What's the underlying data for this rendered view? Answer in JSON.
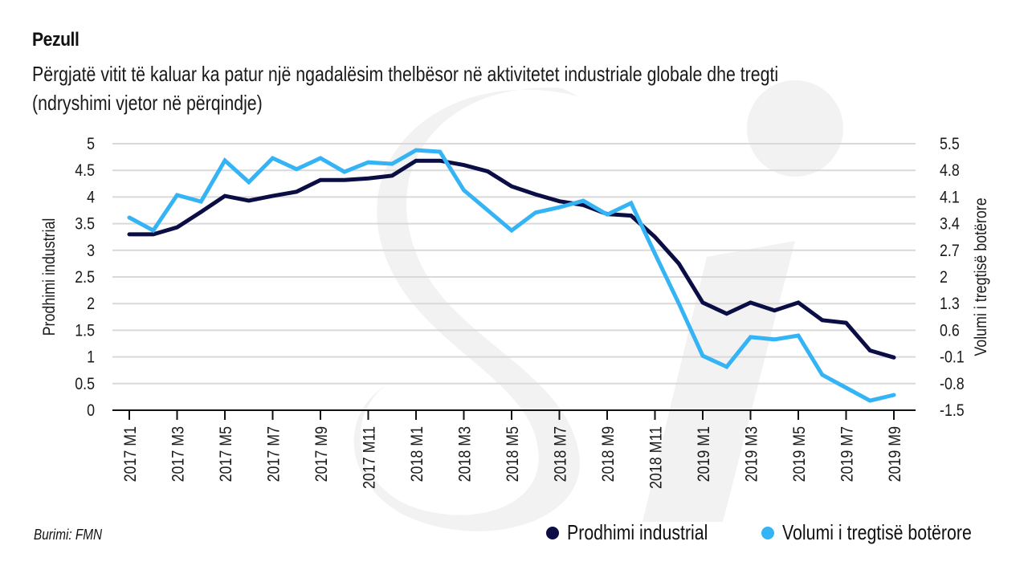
{
  "header": {
    "title": "Pezull",
    "subtitle_line1": "Përgjatë vitit të kaluar ka patur një ngadalësim thelbësor në aktivitetet industriale globale dhe tregti",
    "subtitle_line2": "(ndryshimi vjetor në përqindje)"
  },
  "source": "Burimi: FMN",
  "legend": [
    {
      "label": "Prodhimi industrial",
      "color": "#0b0d45"
    },
    {
      "label": "Volumi i tregtisë botërore",
      "color": "#35b4f5"
    }
  ],
  "chart_data": {
    "type": "line",
    "title": "Pezull",
    "subtitle": "Përgjatë vitit të kaluar ka patur një ngadalësim thelbësor në aktivitetet industriale globale dhe tregti (ndryshimi vjetor në përqindje)",
    "xlabel": "",
    "ylabel": "Prodhimi industrial",
    "y2label": "Volumi i tregtisë botërore",
    "ylim": [
      0,
      5
    ],
    "y2lim": [
      -1.5,
      5.5
    ],
    "yticks": [
      "0",
      "0.5",
      "1",
      "1.5",
      "2",
      "2.5",
      "3",
      "3.5",
      "4",
      "4.5",
      "5"
    ],
    "y2ticks": [
      "-1.5",
      "-0.8",
      "-0.1",
      "0.6",
      "1.3",
      "2",
      "2.7",
      "3.4",
      "4.1",
      "4.8",
      "5.5"
    ],
    "grid": true,
    "legend_position": "bottom-right",
    "x": [
      "2017 M1",
      "2017 M2",
      "2017 M3",
      "2017 M4",
      "2017 M5",
      "2017 M6",
      "2017 M7",
      "2017 M8",
      "2017 M9",
      "2017 M10",
      "2017 M11",
      "2017 M12",
      "2018 M1",
      "2018 M2",
      "2018 M3",
      "2018 M4",
      "2018 M5",
      "2018 M6",
      "2018 M7",
      "2018 M8",
      "2018 M9",
      "2018 M10",
      "2018 M11",
      "2018 M12",
      "2019 M1",
      "2019 M2",
      "2019 M3",
      "2019 M4",
      "2019 M5",
      "2019 M6",
      "2019 M7",
      "2019 M8",
      "2019 M9"
    ],
    "xticklabels": [
      "2017 M1",
      "2017 M3",
      "2017 M5",
      "2017 M7",
      "2017 M9",
      "2017 M11",
      "2018 M1",
      "2018 M3",
      "2018 M5",
      "2018 M7",
      "2018 M9",
      "2018 M11",
      "2019 M1",
      "2019 M3",
      "2019 M5",
      "2019 M7",
      "2019 M9"
    ],
    "series": [
      {
        "name": "Prodhimi industrial",
        "axis": "left",
        "color": "#0b0d45",
        "values": [
          3.3,
          3.3,
          3.43,
          3.72,
          4.02,
          3.93,
          4.02,
          4.1,
          4.32,
          4.32,
          4.35,
          4.4,
          4.68,
          4.68,
          4.6,
          4.48,
          4.2,
          4.05,
          3.92,
          3.85,
          3.68,
          3.65,
          3.25,
          2.75,
          2.02,
          1.81,
          2.02,
          1.87,
          2.02,
          1.69,
          1.64,
          1.12,
          0.99
        ]
      },
      {
        "name": "Volumi i tregtisë botërore",
        "axis": "right",
        "color": "#35b4f5",
        "values": [
          3.56,
          3.22,
          4.15,
          3.98,
          5.06,
          4.49,
          5.12,
          4.83,
          5.12,
          4.76,
          5.01,
          4.97,
          5.33,
          5.29,
          4.28,
          3.75,
          3.22,
          3.69,
          3.83,
          4.0,
          3.64,
          3.94,
          2.61,
          1.3,
          -0.07,
          -0.36,
          0.42,
          0.36,
          0.46,
          -0.57,
          -0.91,
          -1.25,
          -1.1
        ]
      }
    ]
  }
}
